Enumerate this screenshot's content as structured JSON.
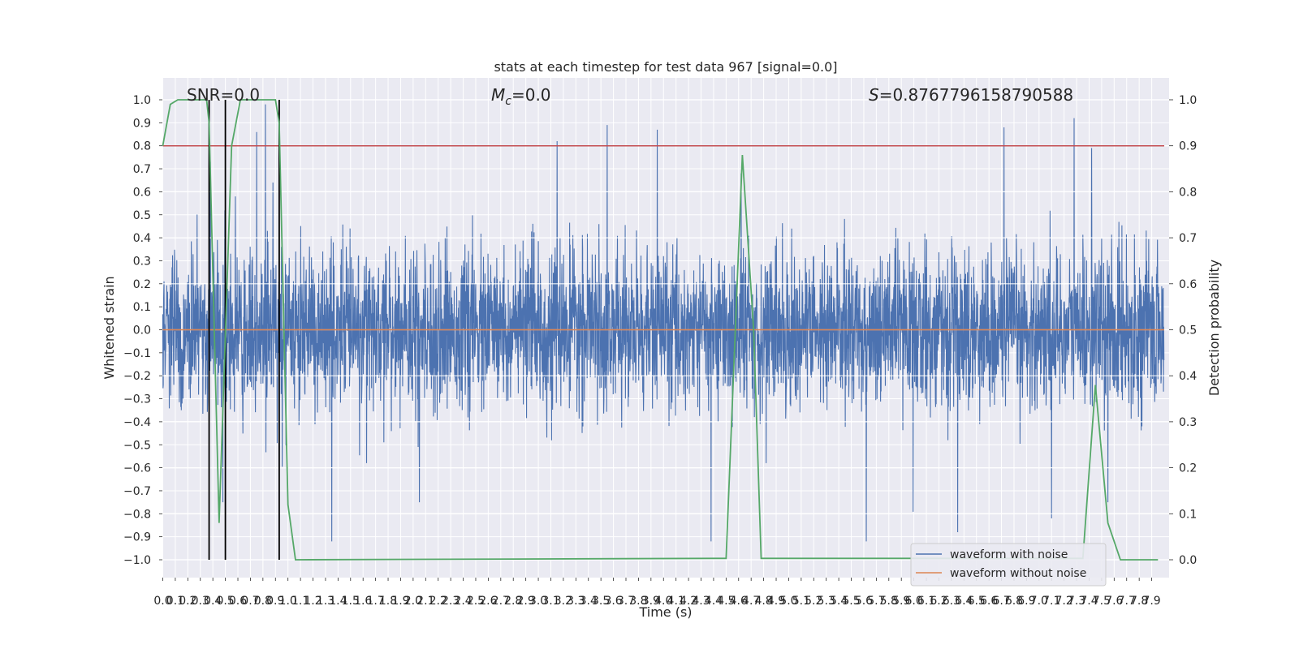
{
  "chart_data": {
    "type": "line",
    "title": "stats at each timestep for test data 967 [signal=0.0]",
    "xlabel": "Time (s)",
    "ylabel": "Whitened strain",
    "ylabel_right": "Detection probability",
    "xlim": [
      0,
      8.0
    ],
    "ylim": [
      -1.05,
      1.05
    ],
    "ylim_right": [
      -0.05,
      1.05
    ],
    "grid": true,
    "legend_position": "lower-right",
    "x_ticks": [
      "0.0",
      "0.1",
      "0.2",
      "0.3",
      "0.4",
      "0.5",
      "0.6",
      "0.7",
      "0.8",
      "0.9",
      "1.0",
      "1.1",
      "1.2",
      "1.3",
      "1.4",
      "1.5",
      "1.6",
      "1.7",
      "1.8",
      "1.9",
      "2.0",
      "2.1",
      "2.2",
      "2.3",
      "2.4",
      "2.5",
      "2.6",
      "2.7",
      "2.8",
      "2.9",
      "3.0",
      "3.1",
      "3.2",
      "3.3",
      "3.4",
      "3.5",
      "3.6",
      "3.7",
      "3.8",
      "3.9",
      "4.0",
      "4.1",
      "4.2",
      "4.3",
      "4.4",
      "4.5",
      "4.6",
      "4.7",
      "4.8",
      "4.9",
      "5.0",
      "5.1",
      "5.2",
      "5.3",
      "5.4",
      "5.5",
      "5.6",
      "5.7",
      "5.8",
      "5.9",
      "6.0",
      "6.1",
      "6.2",
      "6.3",
      "6.4",
      "6.5",
      "6.6",
      "6.7",
      "6.8",
      "6.9",
      "7.0",
      "7.1",
      "7.2",
      "7.3",
      "7.4",
      "7.5",
      "7.6",
      "7.7",
      "7.8",
      "7.9"
    ],
    "y_ticks": [
      "1.0",
      "0.9",
      "0.8",
      "0.7",
      "0.6",
      "0.5",
      "0.4",
      "0.3",
      "0.2",
      "0.1",
      "0.0",
      "−0.1",
      "−0.2",
      "−0.3",
      "−0.4",
      "−0.5",
      "−0.6",
      "−0.7",
      "−0.8",
      "−0.9",
      "−1.0"
    ],
    "y_right_ticks": [
      "1.0",
      "0.9",
      "0.8",
      "0.7",
      "0.6",
      "0.5",
      "0.4",
      "0.3",
      "0.2",
      "0.1",
      "0.0"
    ],
    "annotations": {
      "snr": "SNR=0.0",
      "mc_symbol": "M",
      "mc_sub": "c",
      "mc_value": "=0.0",
      "s_symbol": "S",
      "s_value": "=0.8767796158790588"
    },
    "series": [
      {
        "name": "waveform with noise",
        "color": "#4c72b0",
        "noise_amplitude": 0.3,
        "spike_times": [
          0.38,
          0.48,
          0.58,
          0.75,
          0.82,
          0.88,
          1.35,
          2.05,
          3.15,
          3.55,
          3.95,
          4.38,
          4.62,
          4.82,
          5.62,
          6.35,
          6.72,
          7.1,
          7.28,
          7.42,
          7.55
        ],
        "spike_values": [
          0.73,
          -0.75,
          0.58,
          0.86,
          0.98,
          0.64,
          -0.92,
          -0.75,
          0.82,
          0.89,
          0.87,
          -0.92,
          0.68,
          -0.58,
          -0.92,
          -0.88,
          0.88,
          -0.82,
          0.92,
          0.79,
          -0.75
        ]
      },
      {
        "name": "waveform without noise",
        "color": "#dd8452",
        "values_constant": 0.0
      },
      {
        "name": "",
        "axis": "right",
        "color": "#55a868",
        "x": [
          0.0,
          0.06,
          0.12,
          0.35,
          0.37,
          0.45,
          0.55,
          0.62,
          0.9,
          0.93,
          1.0,
          1.06,
          4.4,
          4.5,
          4.63,
          4.72,
          4.78,
          7.35,
          7.45,
          7.55,
          7.65,
          7.85,
          7.95
        ],
        "y": [
          0.9,
          0.99,
          1.0,
          1.0,
          0.95,
          0.08,
          0.9,
          1.0,
          1.0,
          0.95,
          0.12,
          0.0,
          0.003,
          0.003,
          0.88,
          0.5,
          0.003,
          0.003,
          0.38,
          0.08,
          0.0,
          0.0,
          0.0
        ]
      }
    ],
    "threshold": {
      "color": "#c44e52",
      "value_right": 0.9
    },
    "markers": {
      "color": "#000000",
      "x": [
        0.37,
        0.5,
        0.93
      ],
      "y_top_right": 1.0,
      "y_bottom_right": 0.0
    },
    "legend": [
      {
        "label": "waveform with noise",
        "color": "#4c72b0"
      },
      {
        "label": "waveform without noise",
        "color": "#dd8452"
      }
    ]
  }
}
